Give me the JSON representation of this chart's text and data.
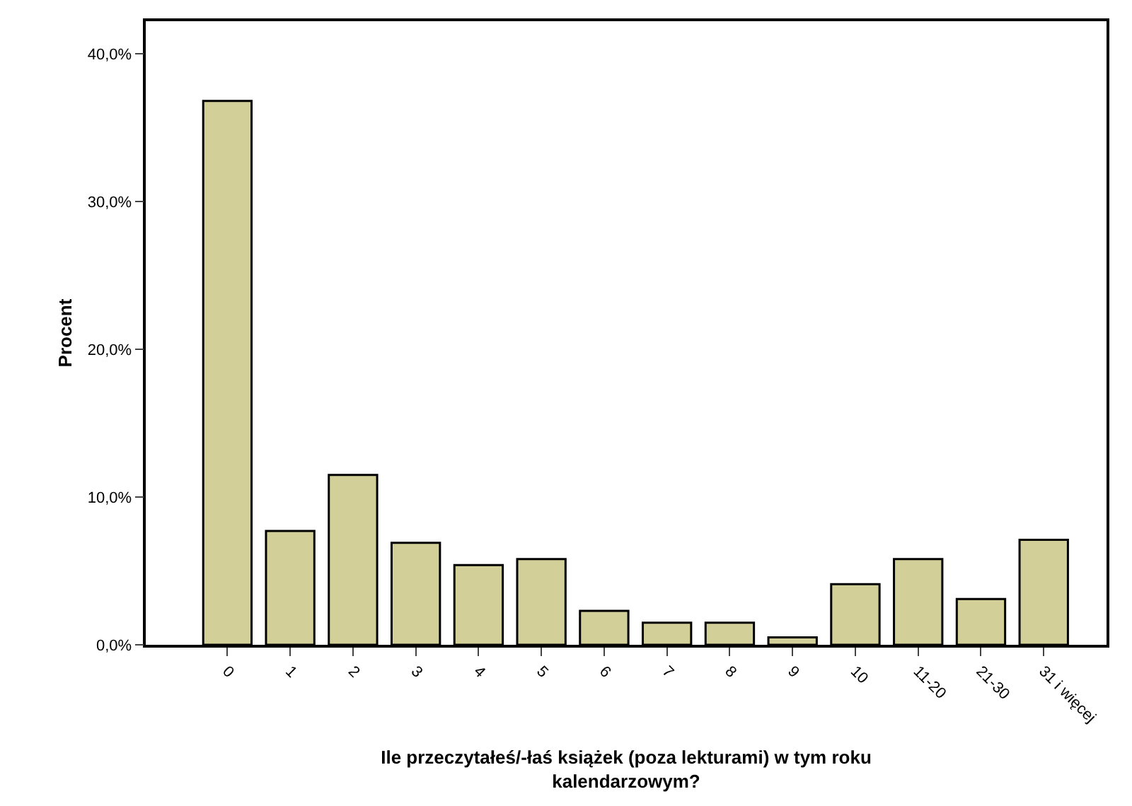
{
  "chart_data": {
    "type": "bar",
    "xlabel": "Ile przeczytałeś/-łaś książek (poza lekturami) w tym roku kalendarzowym?",
    "ylabel": "Procent",
    "categories": [
      "0",
      "1",
      "2",
      "3",
      "4",
      "5",
      "6",
      "7",
      "8",
      "9",
      "10",
      "11-20",
      "21-30",
      "31 i więcej"
    ],
    "values": [
      36.8,
      7.7,
      11.5,
      6.9,
      5.4,
      5.8,
      2.3,
      1.5,
      1.5,
      0.5,
      4.1,
      5.8,
      3.1,
      7.1
    ],
    "color": "#d3cf98",
    "ylim": [
      0,
      42.2
    ],
    "yticks": [
      {
        "value": 0,
        "label": "0,0%"
      },
      {
        "value": 10,
        "label": "10,0%"
      },
      {
        "value": 20,
        "label": "20,0%"
      },
      {
        "value": 30,
        "label": "30,0%"
      },
      {
        "value": 40,
        "label": "40,0%"
      }
    ]
  }
}
